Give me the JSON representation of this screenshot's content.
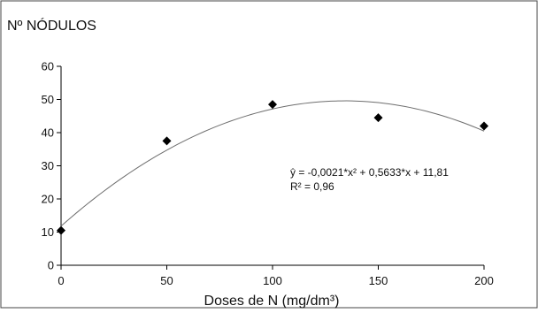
{
  "chart_data": {
    "type": "scatter",
    "title": "Nº  NÓDULOS",
    "xlabel": "Doses de N (mg/dm³)",
    "ylabel": "",
    "xlim": [
      0,
      200
    ],
    "ylim": [
      0,
      60
    ],
    "x_ticks": [
      "0",
      "50",
      "100",
      "150",
      "200"
    ],
    "y_ticks": [
      "0",
      "10",
      "20",
      "30",
      "40",
      "50",
      "60"
    ],
    "x": [
      0,
      50,
      100,
      150,
      200
    ],
    "values": [
      10.5,
      37.5,
      48.5,
      44.5,
      42.0
    ],
    "fit": {
      "a": -0.0021,
      "b": 0.5633,
      "c": 11.81
    },
    "equation": "ŷ = -0,0021*x² + 0,5633*x + 11,81",
    "r2": "R² = 0,96",
    "grid": false,
    "colors": {
      "points": "#000000",
      "curve": "#6e6e6e",
      "axes": "#000000"
    }
  }
}
